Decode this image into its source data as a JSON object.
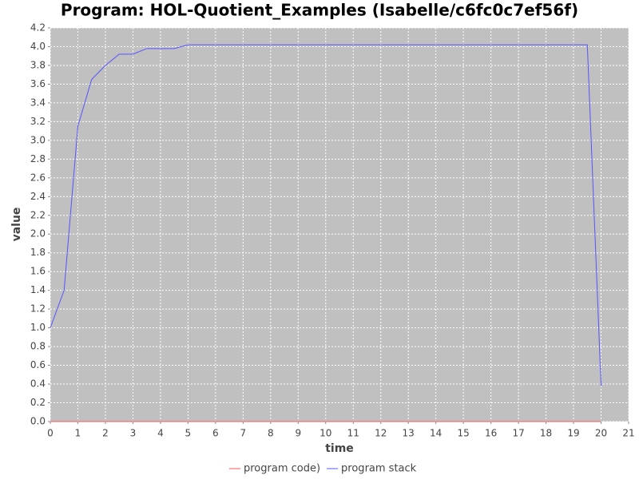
{
  "chart_data": {
    "type": "line",
    "title": "Program: HOL-Quotient_Examples (Isabelle/c6fc0c7ef56f)",
    "x_label": "time",
    "y_label": "value",
    "x": [
      0,
      0.5,
      1,
      1.5,
      2,
      2.5,
      3,
      3.5,
      4,
      4.5,
      5,
      5.5,
      6,
      6.5,
      7,
      7.5,
      8,
      8.5,
      9,
      9.5,
      10,
      10.5,
      11,
      11.5,
      12,
      12.5,
      13,
      13.5,
      14,
      14.5,
      15,
      15.5,
      16,
      16.5,
      17,
      17.5,
      18,
      18.5,
      19,
      19.5,
      20
    ],
    "series": [
      {
        "name": "program code)",
        "color": "#ff5555",
        "values": [
          0,
          0,
          0,
          0,
          0,
          0,
          0,
          0,
          0,
          0,
          0,
          0,
          0,
          0,
          0,
          0,
          0,
          0,
          0,
          0,
          0,
          0,
          0,
          0,
          0,
          0,
          0,
          0,
          0,
          0,
          0,
          0,
          0,
          0,
          0,
          0,
          0,
          0,
          0,
          0,
          0
        ]
      },
      {
        "name": "program stack",
        "color": "#5555ff",
        "values": [
          1.0,
          1.4,
          3.15,
          3.65,
          3.8,
          3.92,
          3.92,
          3.98,
          3.98,
          3.98,
          4.02,
          4.02,
          4.02,
          4.02,
          4.02,
          4.02,
          4.02,
          4.02,
          4.02,
          4.02,
          4.02,
          4.02,
          4.02,
          4.02,
          4.02,
          4.02,
          4.02,
          4.02,
          4.02,
          4.02,
          4.02,
          4.02,
          4.02,
          4.02,
          4.02,
          4.02,
          4.02,
          4.02,
          4.02,
          4.02,
          0.38
        ]
      }
    ],
    "xlim": [
      0,
      21
    ],
    "xticks": [
      0,
      1,
      2,
      3,
      4,
      5,
      6,
      7,
      8,
      9,
      10,
      11,
      12,
      13,
      14,
      15,
      16,
      17,
      18,
      19,
      20,
      21
    ],
    "ylim": [
      0,
      4.2
    ],
    "yticks": [
      {
        "value": 0,
        "label": "0.0"
      },
      0.2,
      0.4,
      0.6,
      0.8,
      {
        "value": 1,
        "label": "1.0"
      },
      1.2,
      1.4,
      1.6,
      1.8,
      {
        "value": 2,
        "label": "2.0"
      },
      2.2,
      2.4,
      2.6,
      2.8,
      {
        "value": 3,
        "label": "3.0"
      },
      3.2,
      3.4,
      3.6,
      3.8,
      {
        "value": 4,
        "label": "4.0"
      },
      4.2
    ],
    "grid": true,
    "legend": "bottom",
    "background": "#c0c0c0"
  }
}
